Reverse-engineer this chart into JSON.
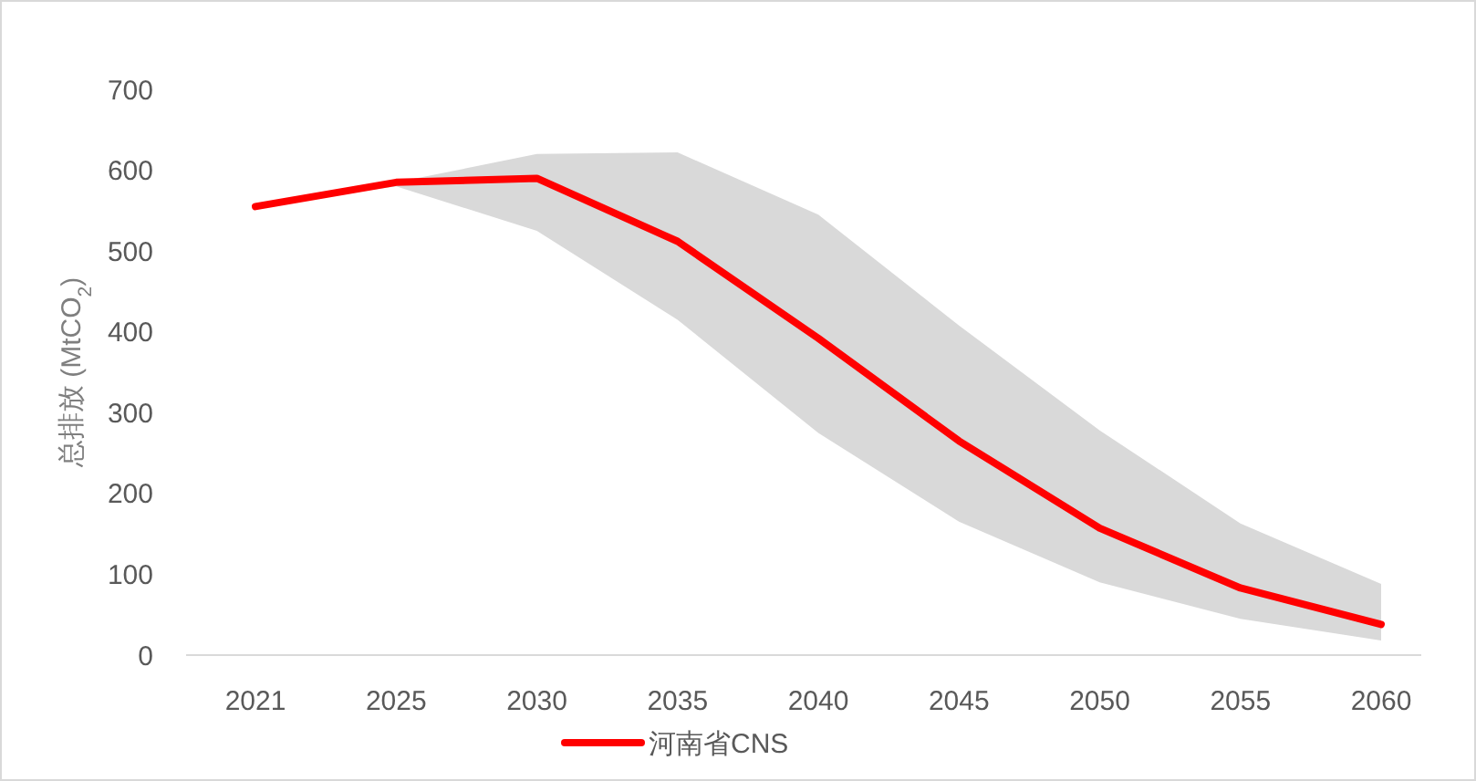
{
  "chart_data": {
    "type": "line",
    "ylabel": "总排放 (MtCO$_{2}$)",
    "categories": [
      "2021",
      "2025",
      "2030",
      "2035",
      "2040",
      "2045",
      "2050",
      "2055",
      "2060"
    ],
    "series": [
      {
        "name": "河南省CNS",
        "color": "#ff0000",
        "values": [
          555,
          585,
          590,
          512,
          392,
          265,
          157,
          83,
          38
        ],
        "lower": [
          555,
          580,
          525,
          415,
          275,
          165,
          90,
          45,
          18
        ],
        "upper": [
          555,
          585,
          620,
          622,
          545,
          408,
          278,
          163,
          88
        ]
      }
    ],
    "ylim": [
      0,
      700
    ],
    "yticks": [
      0,
      100,
      200,
      300,
      400,
      500,
      600,
      700
    ],
    "grid": false,
    "legend": "bottom",
    "marker": "none",
    "line_style": "solid"
  }
}
